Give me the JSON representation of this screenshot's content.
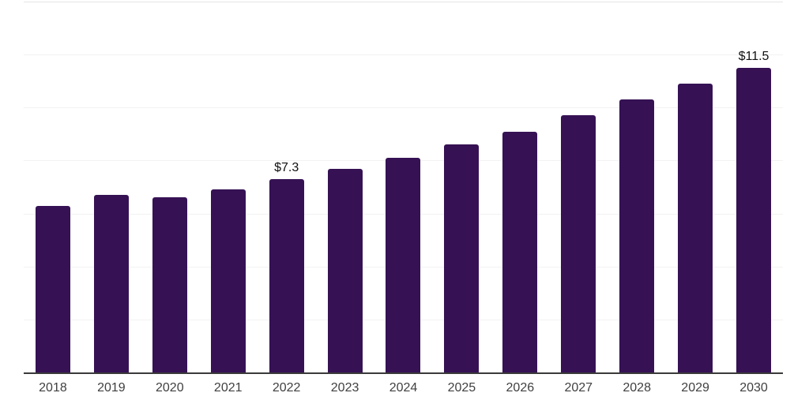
{
  "chart_data": {
    "type": "bar",
    "categories": [
      "2018",
      "2019",
      "2020",
      "2021",
      "2022",
      "2023",
      "2024",
      "2025",
      "2026",
      "2027",
      "2028",
      "2029",
      "2030"
    ],
    "values": [
      6.3,
      6.7,
      6.6,
      6.9,
      7.3,
      7.7,
      8.1,
      8.6,
      9.1,
      9.7,
      10.3,
      10.9,
      11.5
    ],
    "data_labels": {
      "2022": "$7.3",
      "2030": "$11.5"
    },
    "title": "",
    "xlabel": "",
    "ylabel": "",
    "ylim": [
      0,
      14
    ],
    "gridline_step": 2,
    "grid": "horizontal-only",
    "legend": "none",
    "colors": {
      "bar": "#361254",
      "gridline": "#f2f2f2",
      "top_gridline": "#e5e5e5",
      "axis_line": "#3a3a3a",
      "tick_label": "#404040",
      "data_label": "#111111",
      "background": "#ffffff"
    }
  }
}
